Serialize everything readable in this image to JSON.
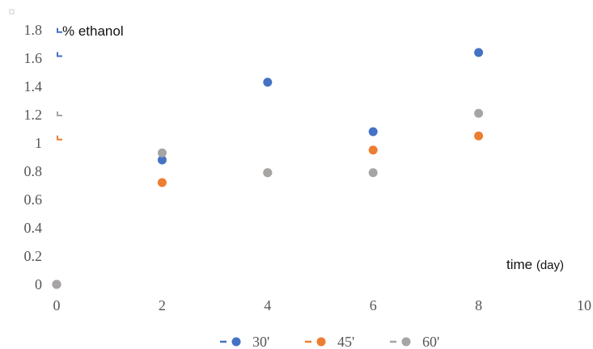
{
  "chart_data": {
    "type": "scatter",
    "ylabel": "% ethanol",
    "xlabel_main": "time ",
    "xlabel_unit": "(day)",
    "xlim": [
      0,
      10
    ],
    "ylim": [
      0,
      1.8
    ],
    "x_ticks": [
      0,
      2,
      4,
      6,
      8,
      10
    ],
    "y_ticks": [
      0,
      0.2,
      0.4,
      0.6,
      0.8,
      1,
      1.2,
      1.4,
      1.6,
      1.8
    ],
    "grid": false,
    "legend_position": "bottom",
    "series": [
      {
        "name": "30'",
        "color": "#4472C4",
        "points": [
          [
            0,
            0
          ],
          [
            2,
            0.88
          ],
          [
            4,
            1.43
          ],
          [
            6,
            1.08
          ],
          [
            8,
            1.64
          ]
        ]
      },
      {
        "name": "45'",
        "color": "#ED7D31",
        "points": [
          [
            0,
            0
          ],
          [
            2,
            0.72
          ],
          [
            4,
            0.79
          ],
          [
            6,
            0.95
          ],
          [
            8,
            1.05
          ]
        ]
      },
      {
        "name": "60'",
        "color": "#A5A5A5",
        "points": [
          [
            0,
            0
          ],
          [
            2,
            0.93
          ],
          [
            4,
            0.79
          ],
          [
            6,
            0.79
          ],
          [
            8,
            1.21
          ]
        ]
      }
    ],
    "y_axis_markers": [
      {
        "series": "30'",
        "y": 1.62
      },
      {
        "series": "45'",
        "y": 1.03
      },
      {
        "series": "60'",
        "y": 1.2
      },
      {
        "series": "30'",
        "y": 1.79
      }
    ]
  }
}
